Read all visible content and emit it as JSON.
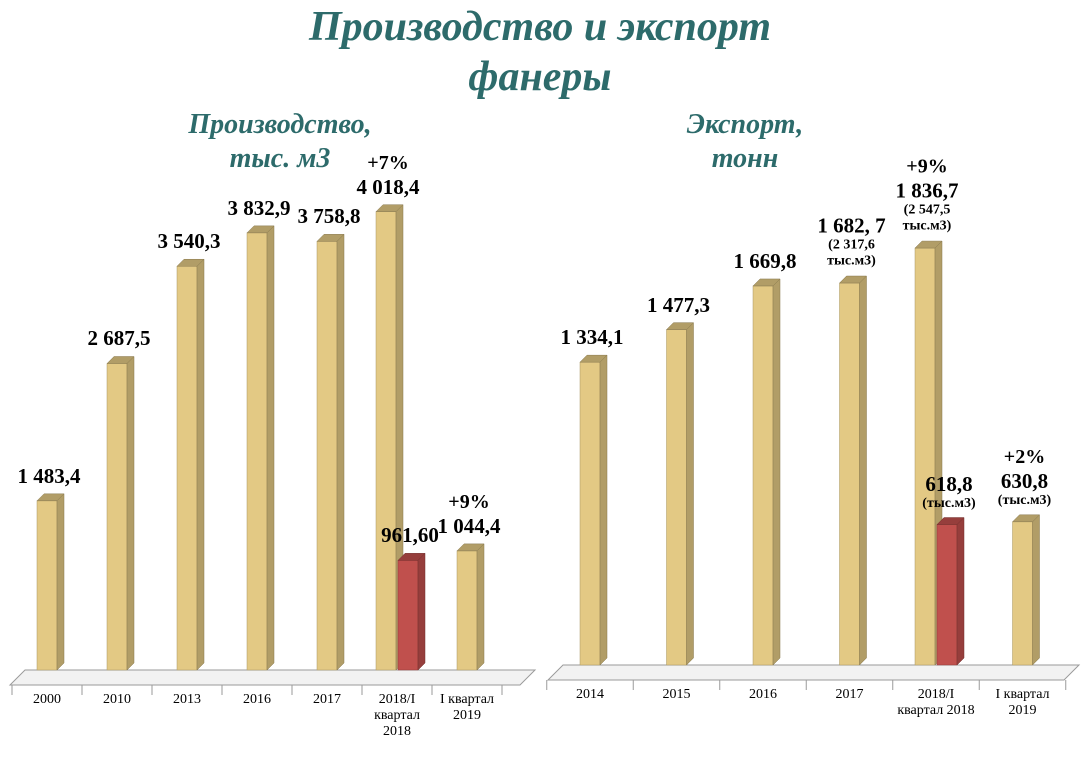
{
  "title": "Производство и экспорт фанеры",
  "chart_data": [
    {
      "type": "bar",
      "title": "Производство, тыс. м3",
      "categories": [
        "2000",
        "2010",
        "2013",
        "2016",
        "2017",
        "2018/I квартал 2018",
        "I квартал 2019"
      ],
      "ylim": [
        0,
        4200
      ],
      "series": [
        {
          "color": "#e3c984",
          "values": [
            1483.4,
            2687.5,
            3540.3,
            3832.9,
            3758.8,
            4018.4,
            1044.4
          ],
          "value_labels": [
            "1 483,4",
            "2 687,5",
            "3 540,3",
            "3 832,9",
            "3 758,8",
            "4 018,4",
            "1 044,4"
          ],
          "growth_labels": [
            null,
            null,
            null,
            null,
            null,
            "+7%",
            "+9%"
          ]
        },
        {
          "color": "#c0504d",
          "values": [
            null,
            null,
            null,
            null,
            null,
            961.6,
            null
          ],
          "value_labels": [
            null,
            null,
            null,
            null,
            null,
            "961,60",
            null
          ]
        }
      ]
    },
    {
      "type": "bar",
      "title": "Экспорт, тонн",
      "categories": [
        "2014",
        "2015",
        "2016",
        "2017",
        "2018/I квартал 2018",
        "I квартал 2019"
      ],
      "ylim": [
        0,
        2000
      ],
      "series": [
        {
          "color": "#e3c984",
          "values": [
            1334.1,
            1477.3,
            1669.8,
            1682.7,
            1836.7,
            630.8
          ],
          "value_labels": [
            "1 334,1",
            "1 477,3",
            "1 669,8",
            "1 682, 7",
            "1 836,7",
            "630,8"
          ],
          "sub_labels": [
            null,
            null,
            null,
            "(2 317,6 тыс.м3)",
            "(2 547,5 тыс.м3)",
            "(тыс.м3)"
          ],
          "growth_labels": [
            null,
            null,
            null,
            null,
            "+9%",
            "+2%"
          ]
        },
        {
          "color": "#c0504d",
          "values": [
            null,
            null,
            null,
            null,
            618.8,
            null
          ],
          "value_labels": [
            null,
            null,
            null,
            null,
            "618,8",
            null
          ],
          "sub_labels": [
            null,
            null,
            null,
            null,
            "(тыс.м3)",
            null
          ]
        }
      ]
    }
  ]
}
